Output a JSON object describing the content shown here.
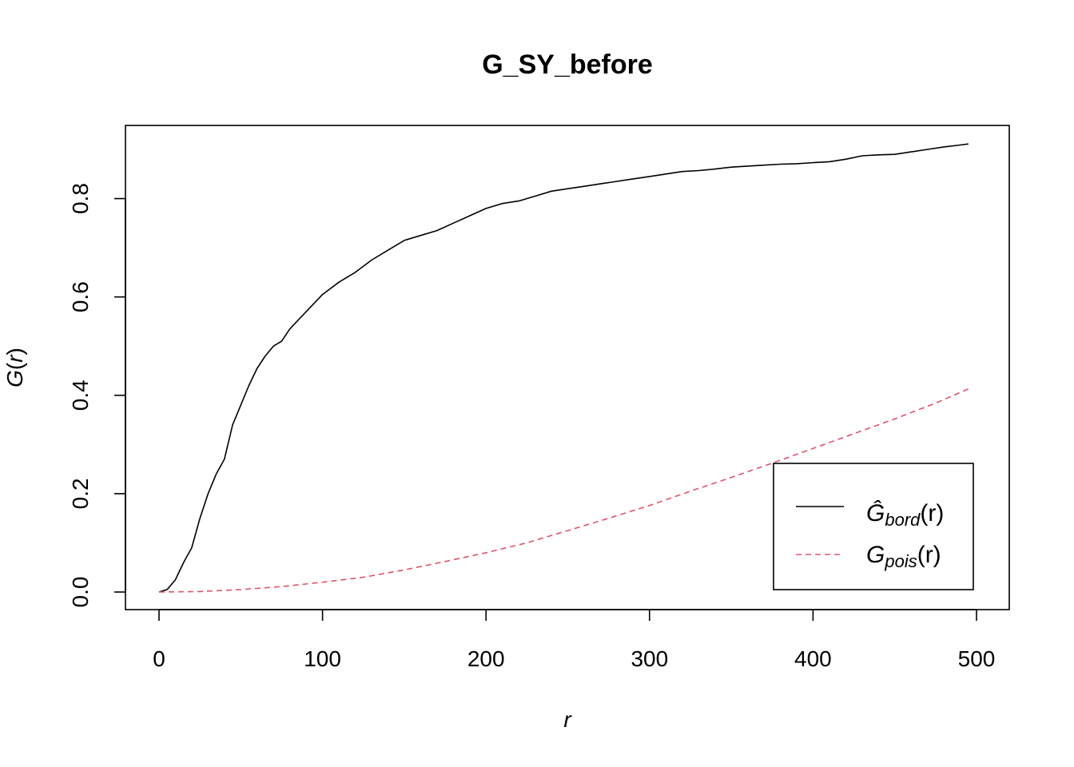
{
  "chart_data": {
    "type": "line",
    "title": "G_SY_before",
    "xlabel_var": "r",
    "ylabel_fn": "G",
    "ylabel_var": "r",
    "xlim": [
      0,
      500
    ],
    "ylim": [
      0,
      0.9
    ],
    "x_ticks": [
      "0",
      "100",
      "200",
      "300",
      "400",
      "500"
    ],
    "y_ticks": [
      "0.0",
      "0.2",
      "0.4",
      "0.6",
      "0.8"
    ],
    "grid": false,
    "legend_position": "bottom-right",
    "series": [
      {
        "key": "bord",
        "legend_main": "Ĝ",
        "legend_sub": "bord",
        "legend_arg": "(r)",
        "color": "#000000",
        "dash": "solid",
        "x": [
          0,
          5,
          10,
          15,
          20,
          25,
          30,
          35,
          40,
          45,
          50,
          55,
          60,
          65,
          70,
          75,
          80,
          90,
          100,
          110,
          120,
          130,
          140,
          150,
          160,
          170,
          180,
          190,
          200,
          210,
          220,
          230,
          240,
          250,
          260,
          270,
          280,
          290,
          300,
          310,
          320,
          330,
          340,
          350,
          360,
          370,
          380,
          390,
          400,
          410,
          420,
          430,
          440,
          450,
          460,
          470,
          480,
          490,
          495
        ],
        "y": [
          0,
          0.005,
          0.025,
          0.06,
          0.09,
          0.15,
          0.2,
          0.24,
          0.27,
          0.34,
          0.38,
          0.42,
          0.455,
          0.48,
          0.5,
          0.51,
          0.535,
          0.57,
          0.605,
          0.63,
          0.65,
          0.675,
          0.695,
          0.715,
          0.725,
          0.735,
          0.75,
          0.765,
          0.78,
          0.79,
          0.795,
          0.805,
          0.815,
          0.82,
          0.825,
          0.83,
          0.835,
          0.84,
          0.845,
          0.85,
          0.855,
          0.857,
          0.86,
          0.864,
          0.866,
          0.868,
          0.87,
          0.871,
          0.873,
          0.875,
          0.88,
          0.887,
          0.889,
          0.89,
          0.895,
          0.9,
          0.905,
          0.909,
          0.911
        ]
      },
      {
        "key": "pois",
        "legend_main": "G",
        "legend_sub": "pois",
        "legend_arg": "(r)",
        "color": "#DF536B",
        "dash": "dashed",
        "x": [
          0,
          25,
          50,
          75,
          100,
          125,
          150,
          175,
          200,
          225,
          250,
          275,
          300,
          325,
          350,
          375,
          400,
          425,
          450,
          475,
          495
        ],
        "y": [
          0,
          0.001,
          0.005,
          0.011,
          0.02,
          0.03,
          0.045,
          0.062,
          0.08,
          0.1,
          0.125,
          0.15,
          0.176,
          0.205,
          0.233,
          0.262,
          0.292,
          0.322,
          0.352,
          0.384,
          0.413
        ]
      }
    ]
  }
}
